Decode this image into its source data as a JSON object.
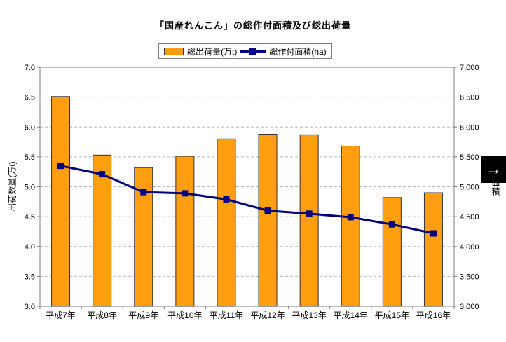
{
  "chart": {
    "title": "「国産れんこん」の総作付面積及び総出荷量"
  },
  "overlay": {
    "right_arrow_icon": "→"
  },
  "chart_data": {
    "type": "combo",
    "title": "「国産れんこん」の総作付面積及び総出荷量",
    "categories": [
      "平成7年",
      "平成8年",
      "平成9年",
      "平成10年",
      "平成11年",
      "平成12年",
      "平成13年",
      "平成14年",
      "平成15年",
      "平成16年"
    ],
    "series": [
      {
        "name": "総出荷量(万t)",
        "type": "bar",
        "axis": "left",
        "color": "#FF9E0E",
        "border_color": "#333333",
        "values": [
          6.51,
          5.53,
          5.32,
          5.51,
          5.8,
          5.88,
          5.87,
          5.68,
          4.82,
          4.9
        ]
      },
      {
        "name": "総作付面積(ha)",
        "type": "line",
        "axis": "right",
        "color": "#000080",
        "marker": "square",
        "values": [
          5350,
          5210,
          4910,
          4890,
          4790,
          4600,
          4550,
          4490,
          4370,
          4220
        ]
      }
    ],
    "left_axis": {
      "label": "出荷数量(万t)",
      "min": 3.0,
      "max": 7.0,
      "step": 0.5
    },
    "right_axis": {
      "label": "面積",
      "min": 3000,
      "max": 7000,
      "step": 500
    },
    "grid": "horizontal-dashed",
    "grid_color": "#B8B8B8",
    "axis_color": "#808080",
    "legend_position": "top"
  }
}
